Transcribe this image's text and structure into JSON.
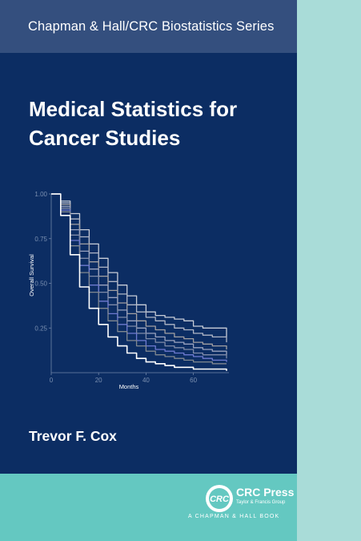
{
  "cover": {
    "series": "Chapman & Hall/CRC Biostatistics Series",
    "title_line1": "Medical Statistics for",
    "title_line2": "Cancer Studies",
    "author": "Trevor F. Cox",
    "publisher_name": "CRC Press",
    "publisher_sub": "Taylor & Francis Group",
    "imprint": "A CHAPMAN & HALL BOOK",
    "logo_text": "CRC"
  },
  "colors": {
    "navy": "#0c2d63",
    "series_band": "#344f7e",
    "teal": "#64c8c1",
    "spine": "#a9dcd8"
  },
  "chart_data": {
    "type": "line",
    "xlabel": "Months",
    "ylabel": "Overall Survival",
    "xlim": [
      0,
      75
    ],
    "ylim": [
      0,
      1
    ],
    "x_ticks": [
      "0",
      "20",
      "40",
      "60"
    ],
    "y_ticks": [
      "1.00",
      "0.75",
      "0.50",
      "0.25"
    ],
    "x_tick_values": [
      0,
      20,
      40,
      60
    ],
    "y_tick_values": [
      1.0,
      0.75,
      0.5,
      0.25
    ],
    "series": [
      {
        "color": "#c8cdd8",
        "x": [
          0,
          4,
          8,
          12,
          16,
          20,
          24,
          28,
          32,
          36,
          40,
          44,
          48,
          52,
          56,
          60,
          64,
          68,
          74
        ],
        "y": [
          1.0,
          0.96,
          0.89,
          0.8,
          0.72,
          0.64,
          0.56,
          0.49,
          0.43,
          0.38,
          0.34,
          0.32,
          0.31,
          0.3,
          0.29,
          0.26,
          0.25,
          0.25,
          0.2
        ]
      },
      {
        "color": "#b0b6c6",
        "x": [
          0,
          4,
          8,
          12,
          16,
          20,
          24,
          28,
          32,
          36,
          40,
          44,
          48,
          52,
          56,
          60,
          64,
          68,
          74
        ],
        "y": [
          1.0,
          0.95,
          0.86,
          0.76,
          0.67,
          0.59,
          0.51,
          0.44,
          0.38,
          0.34,
          0.31,
          0.29,
          0.27,
          0.25,
          0.24,
          0.22,
          0.21,
          0.2,
          0.17
        ]
      },
      {
        "color": "#a2a0a2",
        "x": [
          0,
          4,
          8,
          12,
          16,
          20,
          24,
          28,
          32,
          36,
          40,
          44,
          48,
          52,
          56,
          60,
          64,
          68,
          74
        ],
        "y": [
          1.0,
          0.94,
          0.83,
          0.72,
          0.62,
          0.54,
          0.46,
          0.39,
          0.33,
          0.29,
          0.26,
          0.24,
          0.22,
          0.2,
          0.19,
          0.17,
          0.16,
          0.15,
          0.13
        ]
      },
      {
        "color": "#9aa3bf",
        "x": [
          0,
          4,
          8,
          12,
          16,
          20,
          24,
          28,
          32,
          36,
          40,
          44,
          48,
          52,
          56,
          60,
          64,
          68,
          74
        ],
        "y": [
          1.0,
          0.93,
          0.8,
          0.68,
          0.58,
          0.49,
          0.42,
          0.35,
          0.29,
          0.25,
          0.22,
          0.2,
          0.18,
          0.17,
          0.16,
          0.14,
          0.13,
          0.12,
          0.1
        ]
      },
      {
        "color": "#7f8ba8",
        "x": [
          0,
          4,
          8,
          12,
          16,
          20,
          24,
          28,
          32,
          36,
          40,
          44,
          48,
          52,
          56,
          60,
          64,
          68,
          74
        ],
        "y": [
          1.0,
          0.92,
          0.77,
          0.64,
          0.54,
          0.45,
          0.38,
          0.31,
          0.26,
          0.22,
          0.19,
          0.17,
          0.15,
          0.14,
          0.13,
          0.11,
          0.1,
          0.1,
          0.08
        ]
      },
      {
        "color": "#6e7ad0",
        "x": [
          0,
          4,
          8,
          12,
          16,
          20,
          24,
          28,
          32,
          36,
          40,
          44,
          48,
          52,
          56,
          60,
          64,
          68,
          74
        ],
        "y": [
          1.0,
          0.91,
          0.74,
          0.6,
          0.49,
          0.4,
          0.33,
          0.27,
          0.22,
          0.18,
          0.15,
          0.13,
          0.12,
          0.11,
          0.1,
          0.09,
          0.08,
          0.07,
          0.06
        ]
      },
      {
        "color": "#808890",
        "x": [
          0,
          4,
          8,
          12,
          16,
          20,
          24,
          28,
          32,
          36,
          40,
          44,
          48,
          52,
          56,
          60,
          64,
          68,
          74
        ],
        "y": [
          1.0,
          0.9,
          0.71,
          0.56,
          0.45,
          0.36,
          0.29,
          0.23,
          0.18,
          0.15,
          0.12,
          0.1,
          0.09,
          0.08,
          0.07,
          0.06,
          0.06,
          0.05,
          0.05
        ]
      },
      {
        "color": "#ffffff",
        "x": [
          0,
          4,
          8,
          12,
          16,
          20,
          24,
          28,
          32,
          36,
          40,
          44,
          48,
          52,
          56,
          60,
          64,
          68,
          74
        ],
        "y": [
          1.0,
          0.88,
          0.66,
          0.48,
          0.36,
          0.27,
          0.2,
          0.15,
          0.11,
          0.08,
          0.06,
          0.05,
          0.04,
          0.03,
          0.03,
          0.02,
          0.02,
          0.02,
          0.01
        ]
      }
    ]
  }
}
